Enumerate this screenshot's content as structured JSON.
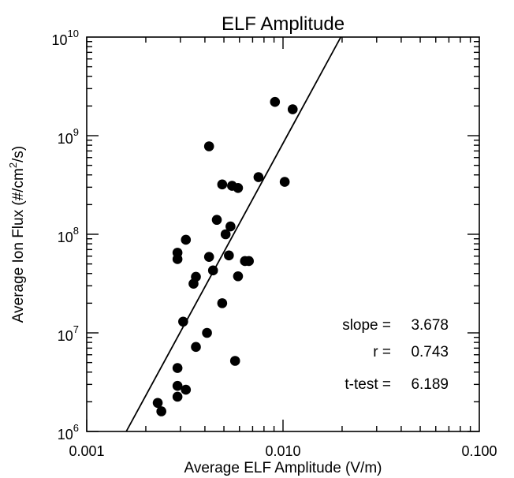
{
  "chart_data": {
    "type": "scatter",
    "title": "ELF Amplitude",
    "xlabel": "Average ELF Amplitude (V/m)",
    "ylabel_parts": [
      "Average Ion Flux (#/cm",
      "2",
      "/s)"
    ],
    "x_scale": "log",
    "y_scale": "log",
    "xlim": [
      0.001,
      0.1
    ],
    "ylim": [
      1000000,
      10000000000
    ],
    "x_ticks": [
      {
        "value": 0.001,
        "label": "0.001"
      },
      {
        "value": 0.01,
        "label": "0.010"
      },
      {
        "value": 0.1,
        "label": "0.100"
      }
    ],
    "y_ticks": [
      {
        "value": 1000000,
        "base": "10",
        "exp": "6"
      },
      {
        "value": 10000000,
        "base": "10",
        "exp": "7"
      },
      {
        "value": 100000000,
        "base": "10",
        "exp": "8"
      },
      {
        "value": 1000000000,
        "base": "10",
        "exp": "9"
      },
      {
        "value": 10000000000,
        "base": "10",
        "exp": "10"
      }
    ],
    "points": [
      {
        "x": 0.0091,
        "y": 2200000000
      },
      {
        "x": 0.0112,
        "y": 1850000000
      },
      {
        "x": 0.0042,
        "y": 780000000
      },
      {
        "x": 0.0075,
        "y": 380000000
      },
      {
        "x": 0.0102,
        "y": 340000000
      },
      {
        "x": 0.0049,
        "y": 320000000
      },
      {
        "x": 0.0055,
        "y": 310000000
      },
      {
        "x": 0.0059,
        "y": 295000000
      },
      {
        "x": 0.0046,
        "y": 140000000
      },
      {
        "x": 0.0054,
        "y": 120000000
      },
      {
        "x": 0.0051,
        "y": 100000000
      },
      {
        "x": 0.0032,
        "y": 88000000
      },
      {
        "x": 0.0029,
        "y": 65000000
      },
      {
        "x": 0.0029,
        "y": 56000000
      },
      {
        "x": 0.0042,
        "y": 59000000
      },
      {
        "x": 0.0053,
        "y": 61000000
      },
      {
        "x": 0.0064,
        "y": 53500000
      },
      {
        "x": 0.0067,
        "y": 53500000
      },
      {
        "x": 0.0044,
        "y": 43000000
      },
      {
        "x": 0.0036,
        "y": 37000000
      },
      {
        "x": 0.0059,
        "y": 37500000
      },
      {
        "x": 0.0035,
        "y": 31500000
      },
      {
        "x": 0.0049,
        "y": 20000000
      },
      {
        "x": 0.0031,
        "y": 13000000
      },
      {
        "x": 0.0041,
        "y": 10000000
      },
      {
        "x": 0.0036,
        "y": 7200000
      },
      {
        "x": 0.0057,
        "y": 5200000
      },
      {
        "x": 0.0029,
        "y": 4400000
      },
      {
        "x": 0.0029,
        "y": 2900000
      },
      {
        "x": 0.0032,
        "y": 2650000
      },
      {
        "x": 0.0029,
        "y": 2250000
      },
      {
        "x": 0.0023,
        "y": 1950000
      },
      {
        "x": 0.0024,
        "y": 1600000
      }
    ],
    "fit_line": {
      "slope": 3.678,
      "points": [
        [
          0.00159,
          1000000
        ],
        [
          0.0197,
          10000000000
        ]
      ]
    },
    "annotations": [
      {
        "label": "slope =",
        "value": "3.678"
      },
      {
        "label": "r =",
        "value": "0.743"
      },
      {
        "label": "t-test =",
        "value": "6.189"
      }
    ],
    "grid": false,
    "colors": {
      "marker": "#000000",
      "line": "#000000",
      "axes": "#000000"
    }
  }
}
